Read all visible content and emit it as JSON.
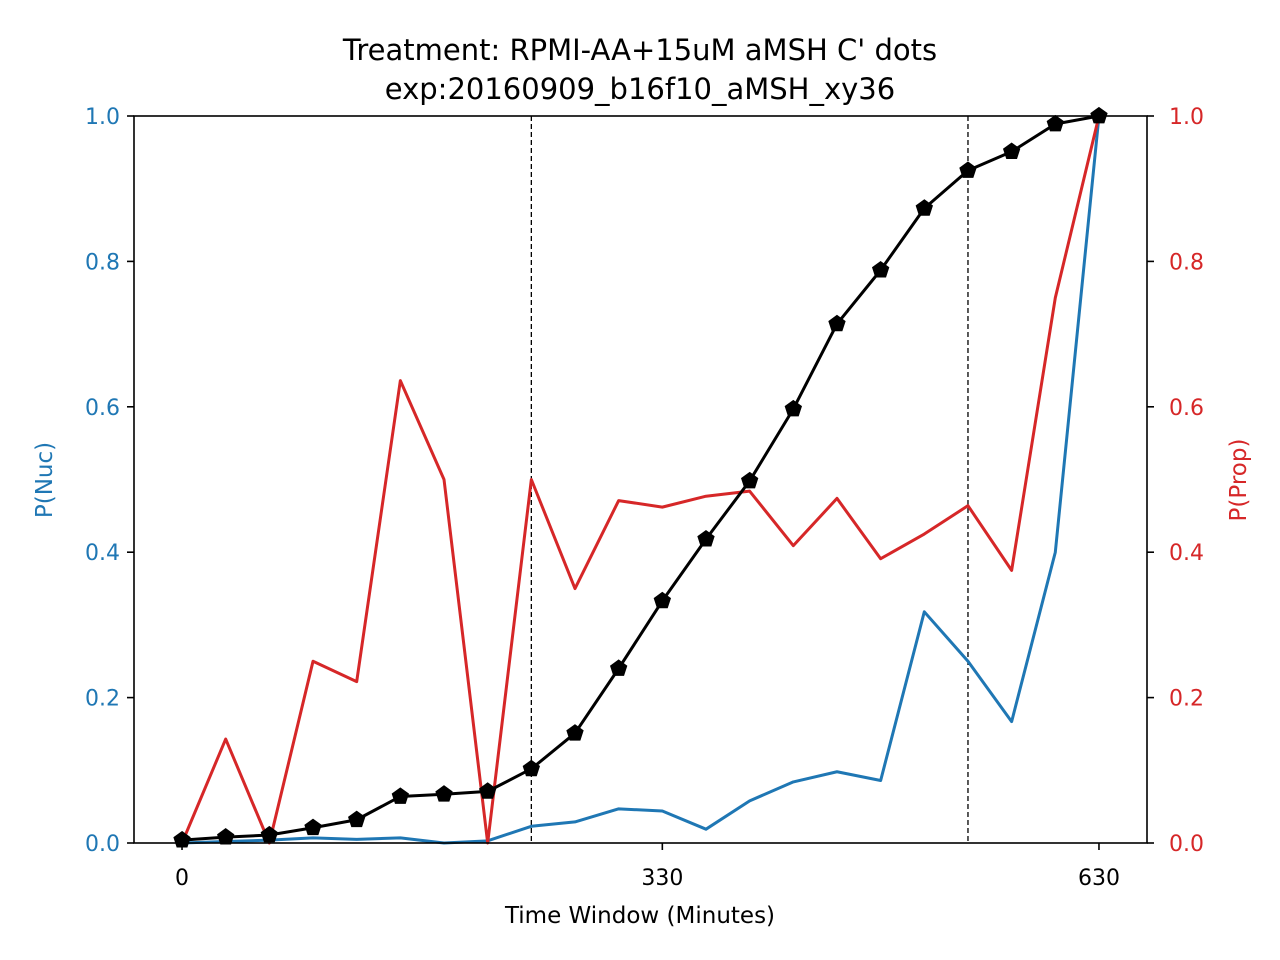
{
  "chart_data": {
    "type": "line",
    "title": "Treatment: RPMI-AA+15uM aMSH C' dots",
    "subtitle": "exp:20160909_b16f10_aMSH_xy36",
    "xlabel": "Time Window (Minutes)",
    "ylabel_left": "P(Nuc)",
    "ylabel_right": "P(Prop)",
    "xlim": [
      -33,
      663
    ],
    "ylim_left": [
      0,
      1
    ],
    "ylim_right": [
      0,
      1
    ],
    "x_ticks": [
      0,
      330,
      630
    ],
    "x_tick_labels": [
      "0",
      "330",
      "630"
    ],
    "y_ticks_left": [
      0.0,
      0.2,
      0.4,
      0.6,
      0.8,
      1.0
    ],
    "y_tick_labels_left": [
      "0.0",
      "0.2",
      "0.4",
      "0.6",
      "0.8",
      "1.0"
    ],
    "y_ticks_right": [
      0.0,
      0.2,
      0.4,
      0.6,
      0.8,
      1.0
    ],
    "y_tick_labels_right": [
      "0.0",
      "0.2",
      "0.4",
      "0.6",
      "0.8",
      "1.0"
    ],
    "vlines": [
      240,
      540
    ],
    "grid": false,
    "legend": "none",
    "colors": {
      "nuc": "#1f77b4",
      "prop": "#d62728",
      "cumulative": "#000000"
    },
    "x": [
      0,
      30,
      60,
      90,
      120,
      150,
      180,
      210,
      240,
      270,
      300,
      330,
      360,
      390,
      420,
      450,
      480,
      510,
      540,
      570,
      600,
      630
    ],
    "series": [
      {
        "axis": "left",
        "color": "#1f77b4",
        "marker": "none",
        "values": [
          0.0,
          0.002,
          0.004,
          0.007,
          0.005,
          0.007,
          0.0,
          0.003,
          0.023,
          0.029,
          0.047,
          0.044,
          0.019,
          0.058,
          0.084,
          0.098,
          0.086,
          0.318,
          0.25,
          0.167,
          0.4,
          1.0
        ]
      },
      {
        "axis": "right",
        "color": "#d62728",
        "marker": "none",
        "values": [
          0.0,
          0.143,
          0.0,
          0.25,
          0.222,
          0.636,
          0.5,
          0.0,
          0.5,
          0.35,
          0.471,
          0.462,
          0.477,
          0.484,
          0.409,
          0.474,
          0.391,
          0.425,
          0.464,
          0.375,
          0.75,
          1.0
        ]
      },
      {
        "axis": "left",
        "color": "#000000",
        "marker": "pentagon",
        "values": [
          0.004,
          0.008,
          0.011,
          0.021,
          0.032,
          0.064,
          0.067,
          0.071,
          0.102,
          0.151,
          0.24,
          0.333,
          0.418,
          0.498,
          0.597,
          0.714,
          0.788,
          0.873,
          0.925,
          0.951,
          0.989,
          1.0
        ]
      }
    ]
  }
}
